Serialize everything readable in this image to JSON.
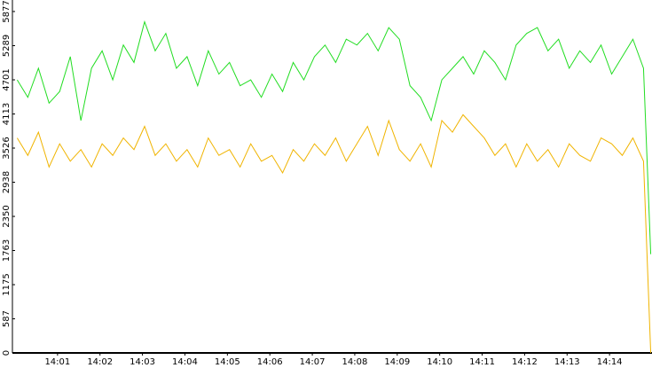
{
  "chart_data": {
    "type": "line",
    "x": [
      0.05,
      0.3,
      0.55,
      0.8,
      1.05,
      1.3,
      1.55,
      1.8,
      2.05,
      2.3,
      2.55,
      2.8,
      3.05,
      3.3,
      3.55,
      3.8,
      4.05,
      4.3,
      4.55,
      4.8,
      5.05,
      5.3,
      5.55,
      5.8,
      6.05,
      6.3,
      6.55,
      6.8,
      7.05,
      7.3,
      7.55,
      7.8,
      8.05,
      8.3,
      8.55,
      8.8,
      9.05,
      9.3,
      9.55,
      9.8,
      10.05,
      10.3,
      10.55,
      10.8,
      11.05,
      11.3,
      11.55,
      11.8,
      12.05,
      12.3,
      12.55,
      12.8,
      13.05,
      13.3,
      13.55,
      13.8,
      14.05,
      14.3,
      14.55,
      14.8,
      14.97
    ],
    "series": [
      {
        "color": "#22dd22",
        "values": [
          4700,
          4400,
          4900,
          4300,
          4500,
          5100,
          4000,
          4900,
          5200,
          4700,
          5300,
          5000,
          5700,
          5200,
          5500,
          4900,
          5100,
          4600,
          5200,
          4800,
          5000,
          4600,
          4700,
          4400,
          4800,
          4500,
          5000,
          4700,
          5100,
          5300,
          5000,
          5400,
          5300,
          5500,
          5200,
          5600,
          5400,
          4600,
          4400,
          4000,
          4700,
          4900,
          5100,
          4800,
          5200,
          5000,
          4700,
          5300,
          5500,
          5600,
          5200,
          5400,
          4900,
          5200,
          5000,
          5300,
          4800,
          5100,
          5400,
          4900,
          1700
        ]
      },
      {
        "color": "#f0b400",
        "values": [
          3700,
          3400,
          3800,
          3200,
          3600,
          3300,
          3500,
          3200,
          3600,
          3400,
          3700,
          3500,
          3900,
          3400,
          3600,
          3300,
          3500,
          3200,
          3700,
          3400,
          3500,
          3200,
          3600,
          3300,
          3400,
          3100,
          3500,
          3300,
          3600,
          3400,
          3700,
          3300,
          3600,
          3900,
          3400,
          4000,
          3500,
          3300,
          3600,
          3200,
          4000,
          3800,
          4100,
          3900,
          3700,
          3400,
          3600,
          3200,
          3600,
          3300,
          3500,
          3200,
          3600,
          3400,
          3300,
          3700,
          3600,
          3400,
          3700,
          3300,
          0
        ]
      }
    ],
    "xlim": [
      0,
      15
    ],
    "xticks": [
      {
        "value": 1,
        "label": "14:01"
      },
      {
        "value": 2,
        "label": "14:02"
      },
      {
        "value": 3,
        "label": "14:03"
      },
      {
        "value": 4,
        "label": "14:04"
      },
      {
        "value": 5,
        "label": "14:05"
      },
      {
        "value": 6,
        "label": "14:06"
      },
      {
        "value": 7,
        "label": "14:07"
      },
      {
        "value": 8,
        "label": "14:08"
      },
      {
        "value": 9,
        "label": "14:09"
      },
      {
        "value": 10,
        "label": "14:10"
      },
      {
        "value": 11,
        "label": "14:11"
      },
      {
        "value": 12,
        "label": "14:12"
      },
      {
        "value": 13,
        "label": "14:13"
      },
      {
        "value": 14,
        "label": "14:14"
      }
    ],
    "ylim": [
      0,
      6075
    ],
    "yticks": [
      0,
      587,
      1175,
      1763,
      2350,
      2938,
      3526,
      4113,
      4701,
      5289,
      5877
    ]
  }
}
